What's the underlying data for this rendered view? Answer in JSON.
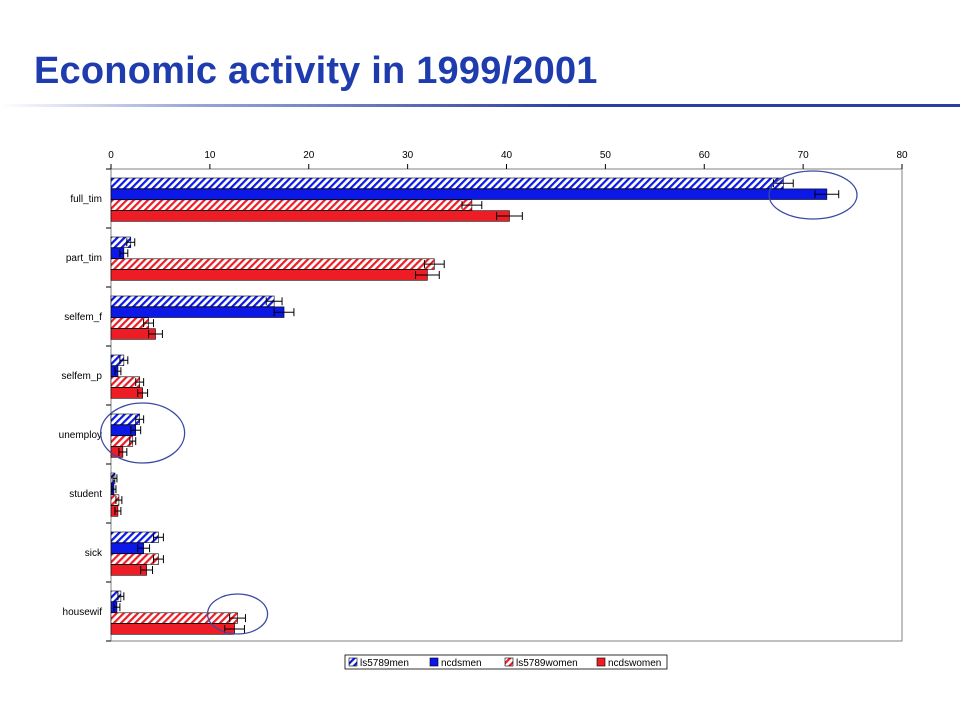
{
  "title": "Economic activity in 1999/2001",
  "colors": {
    "title": "#1f3caf",
    "blue": "#0b18e8",
    "red": "#ee1c24",
    "circle": "#3a4aa3"
  },
  "chart_data": {
    "type": "bar",
    "orientation": "horizontal",
    "title": "",
    "xlabel": "",
    "ylabel": "",
    "xlim": [
      0,
      80
    ],
    "x_ticks": [
      0,
      10,
      20,
      30,
      40,
      50,
      60,
      70,
      80
    ],
    "x_axis_position": "top",
    "grid": false,
    "legend_position": "bottom",
    "categories": [
      "full_tim",
      "part_tim",
      "selfem_f",
      "selfem_p",
      "unemploy",
      "student",
      "sick",
      "housewif"
    ],
    "series": [
      {
        "name": "ls5789men",
        "pattern": "hatched",
        "color": "#0b18e8",
        "values": [
          68,
          2,
          16.5,
          1.3,
          2.9,
          0.4,
          4.8,
          1
        ],
        "errors": [
          1.0,
          0.4,
          0.8,
          0.4,
          0.4,
          0.2,
          0.5,
          0.3
        ]
      },
      {
        "name": "ncdsmen",
        "pattern": "solid",
        "color": "#0b18e8",
        "values": [
          72.4,
          1.3,
          17.5,
          0.7,
          2.5,
          0.3,
          3.3,
          0.6
        ],
        "errors": [
          1.2,
          0.4,
          1.0,
          0.3,
          0.5,
          0.2,
          0.6,
          0.3
        ]
      },
      {
        "name": "ls5789women",
        "pattern": "hatched",
        "color": "#ee1c24",
        "values": [
          36.5,
          32.7,
          3.8,
          2.9,
          2.2,
          0.8,
          4.8,
          12.8
        ],
        "errors": [
          1.0,
          1.0,
          0.5,
          0.4,
          0.3,
          0.3,
          0.5,
          0.8
        ]
      },
      {
        "name": "ncdswomen",
        "pattern": "solid",
        "color": "#ee1c24",
        "values": [
          40.3,
          32,
          4.5,
          3.2,
          1.2,
          0.7,
          3.6,
          12.5
        ],
        "errors": [
          1.3,
          1.2,
          0.7,
          0.5,
          0.4,
          0.3,
          0.6,
          1.0
        ]
      }
    ],
    "highlights": [
      {
        "category": "full_tim",
        "note": "circle around men bars"
      },
      {
        "category": "unemploy",
        "note": "circle around all bars"
      },
      {
        "category": "housewif",
        "note": "circle around women bars"
      }
    ]
  }
}
